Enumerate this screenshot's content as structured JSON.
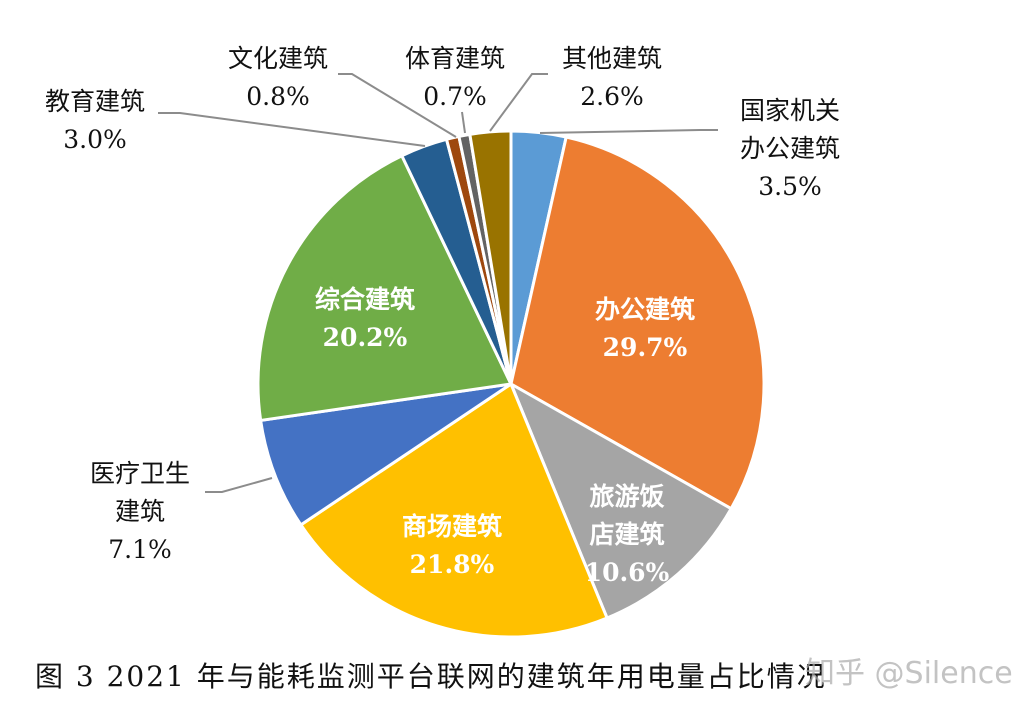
{
  "chart_data": {
    "type": "pie",
    "title": "图 3   2021 年与能耗监测平台联网的建筑年用电量占比情况",
    "start": "top, clockwise",
    "slices": [
      {
        "name": "国家机关办公建筑",
        "line1": "国家机关",
        "line2": "办公建筑",
        "value": 3.5,
        "label": "3.5%",
        "color": "#5B9BD5"
      },
      {
        "name": "办公建筑",
        "value": 29.7,
        "label": "29.7%",
        "color": "#ED7D31"
      },
      {
        "name": "旅游饭店建筑",
        "line1": "旅游饭",
        "line2": "店建筑",
        "value": 10.6,
        "label": "10.6%",
        "color": "#A5A5A5"
      },
      {
        "name": "商场建筑",
        "value": 21.8,
        "label": "21.8%",
        "color": "#FFC000"
      },
      {
        "name": "医疗卫生建筑",
        "line1": "医疗卫生",
        "line2": "建筑",
        "value": 7.1,
        "label": "7.1%",
        "color": "#4472C4"
      },
      {
        "name": "综合建筑",
        "value": 20.2,
        "label": "20.2%",
        "color": "#70AD47"
      },
      {
        "name": "教育建筑",
        "value": 3.0,
        "label": "3.0%",
        "color": "#255E91"
      },
      {
        "name": "文化建筑",
        "value": 0.8,
        "label": "0.8%",
        "color": "#9E480E"
      },
      {
        "name": "体育建筑",
        "value": 0.7,
        "label": "0.7%",
        "color": "#636363"
      },
      {
        "name": "其他建筑",
        "value": 2.6,
        "label": "2.6%",
        "color": "#997300"
      }
    ]
  },
  "watermark": "知乎 @Silence"
}
